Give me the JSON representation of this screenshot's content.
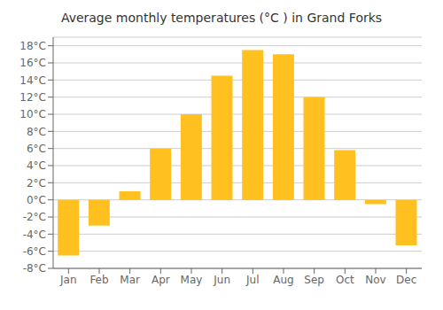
{
  "chart_data": {
    "type": "bar",
    "title": "Average monthly temperatures (°C ) in Grand Forks",
    "categories": [
      "Jan",
      "Feb",
      "Mar",
      "Apr",
      "May",
      "Jun",
      "Jul",
      "Aug",
      "Sep",
      "Oct",
      "Nov",
      "Dec"
    ],
    "values": [
      -6.5,
      -3.0,
      1.0,
      6.0,
      10.0,
      14.5,
      17.5,
      17.0,
      12.0,
      5.8,
      -0.5,
      -5.3
    ],
    "color": "#FFC020",
    "ylim": [
      -8,
      19
    ],
    "yticks": [
      {
        "value": -8,
        "label": "-8°C"
      },
      {
        "value": -6,
        "label": "-6°C"
      },
      {
        "value": -4,
        "label": "-4°C"
      },
      {
        "value": -2,
        "label": "-2°C"
      },
      {
        "value": 0,
        "label": "0°C"
      },
      {
        "value": 2,
        "label": "2°C"
      },
      {
        "value": 4,
        "label": "4°C"
      },
      {
        "value": 6,
        "label": "6°C"
      },
      {
        "value": 8,
        "label": "8°C"
      },
      {
        "value": 10,
        "label": "10°C"
      },
      {
        "value": 12,
        "label": "12°C"
      },
      {
        "value": 14,
        "label": "14°C"
      },
      {
        "value": 16,
        "label": "16°C"
      },
      {
        "value": 18,
        "label": "18°C"
      }
    ],
    "grid": true
  }
}
